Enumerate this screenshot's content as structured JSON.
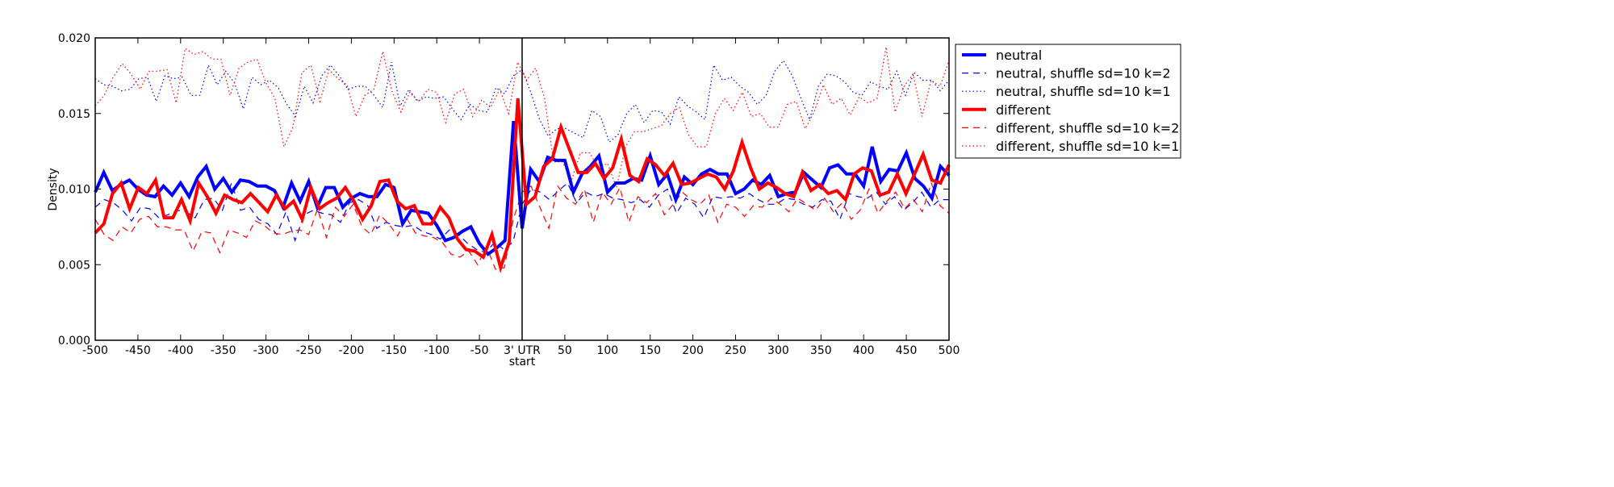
{
  "chart_data": {
    "type": "line",
    "title": "",
    "xlabel": "",
    "ylabel": "Density",
    "xlim": [
      -500,
      500
    ],
    "ylim": [
      0,
      0.02
    ],
    "grid": false,
    "legend_position": "outside-right-top",
    "x_ticks": [
      {
        "value": -500,
        "label": "-500"
      },
      {
        "value": -450,
        "label": "-450"
      },
      {
        "value": -400,
        "label": "-400"
      },
      {
        "value": -350,
        "label": "-350"
      },
      {
        "value": -300,
        "label": "-300"
      },
      {
        "value": -250,
        "label": "-250"
      },
      {
        "value": -200,
        "label": "-200"
      },
      {
        "value": -150,
        "label": "-150"
      },
      {
        "value": -100,
        "label": "-100"
      },
      {
        "value": -50,
        "label": "-50"
      },
      {
        "value": 0,
        "label": "3' UTR",
        "label2": "start"
      },
      {
        "value": 50,
        "label": "50"
      },
      {
        "value": 100,
        "label": "100"
      },
      {
        "value": 150,
        "label": "150"
      },
      {
        "value": 200,
        "label": "200"
      },
      {
        "value": 250,
        "label": "250"
      },
      {
        "value": 300,
        "label": "300"
      },
      {
        "value": 350,
        "label": "350"
      },
      {
        "value": 400,
        "label": "400"
      },
      {
        "value": 450,
        "label": "450"
      },
      {
        "value": 500,
        "label": "500"
      }
    ],
    "y_ticks": [
      {
        "value": 0,
        "label": "0.000"
      },
      {
        "value": 0.005,
        "label": "0.005"
      },
      {
        "value": 0.01,
        "label": "0.010"
      },
      {
        "value": 0.015,
        "label": "0.015"
      },
      {
        "value": 0.02,
        "label": "0.020"
      }
    ],
    "vertical_line_x": 0,
    "series": [
      {
        "name": "neutral",
        "color": "#0000ff",
        "style": "solid",
        "width": 4,
        "values": [
          0.0098,
          0.0111,
          0.0099,
          0.0103,
          0.0106,
          0.01,
          0.0096,
          0.0095,
          0.0102,
          0.0096,
          0.0104,
          0.0095,
          0.0108,
          0.0115,
          0.01,
          0.0107,
          0.0098,
          0.0106,
          0.0105,
          0.0102,
          0.0102,
          0.0099,
          0.0088,
          0.0104,
          0.0092,
          0.0105,
          0.0088,
          0.0101,
          0.0101,
          0.0088,
          0.0094,
          0.0097,
          0.0095,
          0.0095,
          0.0103,
          0.0101,
          0.0077,
          0.0086,
          0.0085,
          0.0084,
          0.0076,
          0.0066,
          0.0068,
          0.0072,
          0.0075,
          0.0064,
          0.0057,
          0.0061,
          0.0066,
          0.0145,
          0.0074,
          0.0113,
          0.0105,
          0.0121,
          0.0119,
          0.0119,
          0.0098,
          0.011,
          0.0115,
          0.0122,
          0.0098,
          0.0104,
          0.0104,
          0.0107,
          0.0106,
          0.0122,
          0.0103,
          0.011,
          0.0093,
          0.0108,
          0.0103,
          0.011,
          0.0113,
          0.011,
          0.011,
          0.0097,
          0.01,
          0.0106,
          0.0103,
          0.0109,
          0.0095,
          0.0097,
          0.0098,
          0.0111,
          0.0106,
          0.0101,
          0.0114,
          0.0116,
          0.011,
          0.011,
          0.0102,
          0.0128,
          0.0105,
          0.0113,
          0.0112,
          0.0124,
          0.0107,
          0.0102,
          0.0094,
          0.0115,
          0.0109
        ]
      },
      {
        "name": "neutral, shuffle sd=10 k=2",
        "color": "#0000ff",
        "style": "dashed",
        "width": 1.2,
        "values": [
          0.0088,
          0.0093,
          0.0091,
          0.0086,
          0.0079,
          0.0088,
          0.0087,
          0.0081,
          0.0083,
          0.0086,
          0.0085,
          0.0081,
          0.0093,
          0.0094,
          0.0086,
          0.0104,
          0.0086,
          0.0088,
          0.008,
          0.0077,
          0.007,
          0.0085,
          0.0066,
          0.0083,
          0.0086,
          0.0084,
          0.0083,
          0.0078,
          0.0091,
          0.0093,
          0.0089,
          0.0074,
          0.0078,
          0.0076,
          0.0075,
          0.0076,
          0.0072,
          0.007,
          0.0067,
          0.0073,
          0.007,
          0.0064,
          0.006,
          0.0058,
          0.0065,
          0.006,
          0.0065,
          0.009,
          0.01,
          0.0098,
          0.0093,
          0.0099,
          0.0104,
          0.0091,
          0.0098,
          0.0095,
          0.0097,
          0.0094,
          0.0093,
          0.0091,
          0.0093,
          0.0088,
          0.0096,
          0.01,
          0.0084,
          0.0094,
          0.009,
          0.0081,
          0.0095,
          0.0094,
          0.0095,
          0.0094,
          0.0097,
          0.0093,
          0.009,
          0.009,
          0.0094,
          0.0093,
          0.009,
          0.0088,
          0.0093,
          0.0092,
          0.008,
          0.0097,
          0.0095,
          0.0094,
          0.0098,
          0.009,
          0.0095,
          0.0086,
          0.0091,
          0.0098,
          0.0088,
          0.0093,
          0.0093
        ]
      },
      {
        "name": "neutral, shuffle sd=10 k=1",
        "color": "#0000ff",
        "style": "dotted",
        "width": 1.2,
        "values": [
          0.0173,
          0.0169,
          0.0168,
          0.0165,
          0.0166,
          0.0173,
          0.0174,
          0.0158,
          0.0175,
          0.0173,
          0.0174,
          0.0162,
          0.0162,
          0.0182,
          0.0169,
          0.0178,
          0.017,
          0.0153,
          0.0174,
          0.0169,
          0.0172,
          0.0167,
          0.0156,
          0.0148,
          0.0168,
          0.0157,
          0.0175,
          0.0182,
          0.0175,
          0.0166,
          0.0168,
          0.0168,
          0.0162,
          0.0154,
          0.0184,
          0.0155,
          0.0166,
          0.0158,
          0.0161,
          0.016,
          0.0161,
          0.0153,
          0.0146,
          0.0156,
          0.0152,
          0.0151,
          0.0167,
          0.0163,
          0.0175,
          0.0179,
          0.0164,
          0.0146,
          0.0135,
          0.014,
          0.014,
          0.0137,
          0.0134,
          0.0152,
          0.0148,
          0.0131,
          0.0136,
          0.015,
          0.0156,
          0.0144,
          0.0152,
          0.0151,
          0.0143,
          0.0161,
          0.0155,
          0.0151,
          0.0146,
          0.0182,
          0.0172,
          0.0174,
          0.0168,
          0.0164,
          0.0156,
          0.0162,
          0.0178,
          0.0185,
          0.0175,
          0.016,
          0.0146,
          0.0168,
          0.0176,
          0.0175,
          0.0171,
          0.0164,
          0.0162,
          0.0171,
          0.0168,
          0.0166,
          0.0178,
          0.0162,
          0.0177,
          0.0172,
          0.0172,
          0.0165,
          0.0172
        ]
      },
      {
        "name": "different",
        "color": "#ff0000",
        "style": "solid",
        "width": 4,
        "values": [
          0.0071,
          0.0077,
          0.0097,
          0.0104,
          0.0087,
          0.0101,
          0.0097,
          0.0106,
          0.0081,
          0.0081,
          0.0093,
          0.0079,
          0.0104,
          0.0095,
          0.0084,
          0.0096,
          0.0093,
          0.0091,
          0.0097,
          0.0091,
          0.0085,
          0.0096,
          0.0087,
          0.0092,
          0.008,
          0.0101,
          0.0087,
          0.0091,
          0.0094,
          0.0101,
          0.0092,
          0.008,
          0.0089,
          0.0105,
          0.0106,
          0.0092,
          0.0087,
          0.0089,
          0.0077,
          0.0077,
          0.0088,
          0.0081,
          0.0067,
          0.006,
          0.0059,
          0.0055,
          0.007,
          0.0048,
          0.0065,
          0.016,
          0.009,
          0.0095,
          0.0115,
          0.012,
          0.0141,
          0.0126,
          0.0111,
          0.0111,
          0.0117,
          0.0107,
          0.0114,
          0.0133,
          0.0109,
          0.0105,
          0.012,
          0.0116,
          0.0109,
          0.0117,
          0.0103,
          0.0104,
          0.0107,
          0.011,
          0.0108,
          0.01,
          0.0112,
          0.0131,
          0.0114,
          0.01,
          0.0104,
          0.0101,
          0.0097,
          0.0095,
          0.0111,
          0.0099,
          0.0103,
          0.0097,
          0.0099,
          0.0093,
          0.011,
          0.0114,
          0.0112,
          0.0096,
          0.0098,
          0.011,
          0.0097,
          0.011,
          0.0123,
          0.0106,
          0.0104,
          0.0116
        ]
      },
      {
        "name": "different, shuffle sd=10 k=2",
        "color": "#ff0000",
        "style": "dashed",
        "width": 1.2,
        "values": [
          0.008,
          0.007,
          0.0066,
          0.0075,
          0.0071,
          0.008,
          0.0082,
          0.0075,
          0.0075,
          0.0073,
          0.0073,
          0.0059,
          0.0072,
          0.0071,
          0.0058,
          0.0073,
          0.0071,
          0.0068,
          0.0079,
          0.0076,
          0.0071,
          0.007,
          0.0072,
          0.0073,
          0.007,
          0.0087,
          0.0068,
          0.0088,
          0.0082,
          0.009,
          0.0075,
          0.007,
          0.0083,
          0.0077,
          0.0069,
          0.0081,
          0.0071,
          0.0069,
          0.0068,
          0.0065,
          0.0057,
          0.0055,
          0.0059,
          0.005,
          0.0062,
          0.0047,
          0.0048,
          0.008,
          0.0098,
          0.0102,
          0.0088,
          0.0074,
          0.0102,
          0.0094,
          0.009,
          0.01,
          0.0078,
          0.0098,
          0.009,
          0.0101,
          0.0078,
          0.0095,
          0.0091,
          0.0097,
          0.0083,
          0.009,
          0.0098,
          0.0093,
          0.009,
          0.0096,
          0.0078,
          0.009,
          0.0088,
          0.0082,
          0.0089,
          0.0088,
          0.0094,
          0.009,
          0.0085,
          0.0094,
          0.009,
          0.0086,
          0.0094,
          0.0085,
          0.0091,
          0.008,
          0.0086,
          0.01,
          0.0084,
          0.0092,
          0.0098,
          0.0087,
          0.0093,
          0.0085,
          0.0104,
          0.0089,
          0.0084
        ]
      },
      {
        "name": "different, shuffle sd=10 k=1",
        "color": "#ff0000",
        "style": "dotted",
        "width": 1.2,
        "values": [
          0.0155,
          0.0162,
          0.0174,
          0.0183,
          0.0176,
          0.0166,
          0.0178,
          0.0178,
          0.0179,
          0.0157,
          0.0193,
          0.0189,
          0.0191,
          0.0186,
          0.0186,
          0.0162,
          0.018,
          0.0184,
          0.0186,
          0.017,
          0.016,
          0.0128,
          0.0141,
          0.0177,
          0.0182,
          0.0158,
          0.0179,
          0.0173,
          0.0169,
          0.0148,
          0.0162,
          0.0166,
          0.0191,
          0.0165,
          0.0151,
          0.0164,
          0.0158,
          0.0166,
          0.0164,
          0.0144,
          0.0163,
          0.0166,
          0.0148,
          0.0159,
          0.0154,
          0.0166,
          0.015,
          0.0184,
          0.0172,
          0.018,
          0.016,
          0.0118,
          0.0118,
          0.0106,
          0.0124,
          0.0124,
          0.0114,
          0.0117,
          0.0101,
          0.0128,
          0.0138,
          0.0138,
          0.014,
          0.0142,
          0.015,
          0.0154,
          0.0136,
          0.0128,
          0.0128,
          0.015,
          0.016,
          0.0152,
          0.0164,
          0.0148,
          0.015,
          0.0141,
          0.0141,
          0.0156,
          0.0158,
          0.014,
          0.0151,
          0.0169,
          0.0156,
          0.016,
          0.0149,
          0.0161,
          0.0157,
          0.016,
          0.0194,
          0.0151,
          0.0168,
          0.0176,
          0.0148,
          0.0172,
          0.0168,
          0.0185
        ]
      }
    ]
  }
}
